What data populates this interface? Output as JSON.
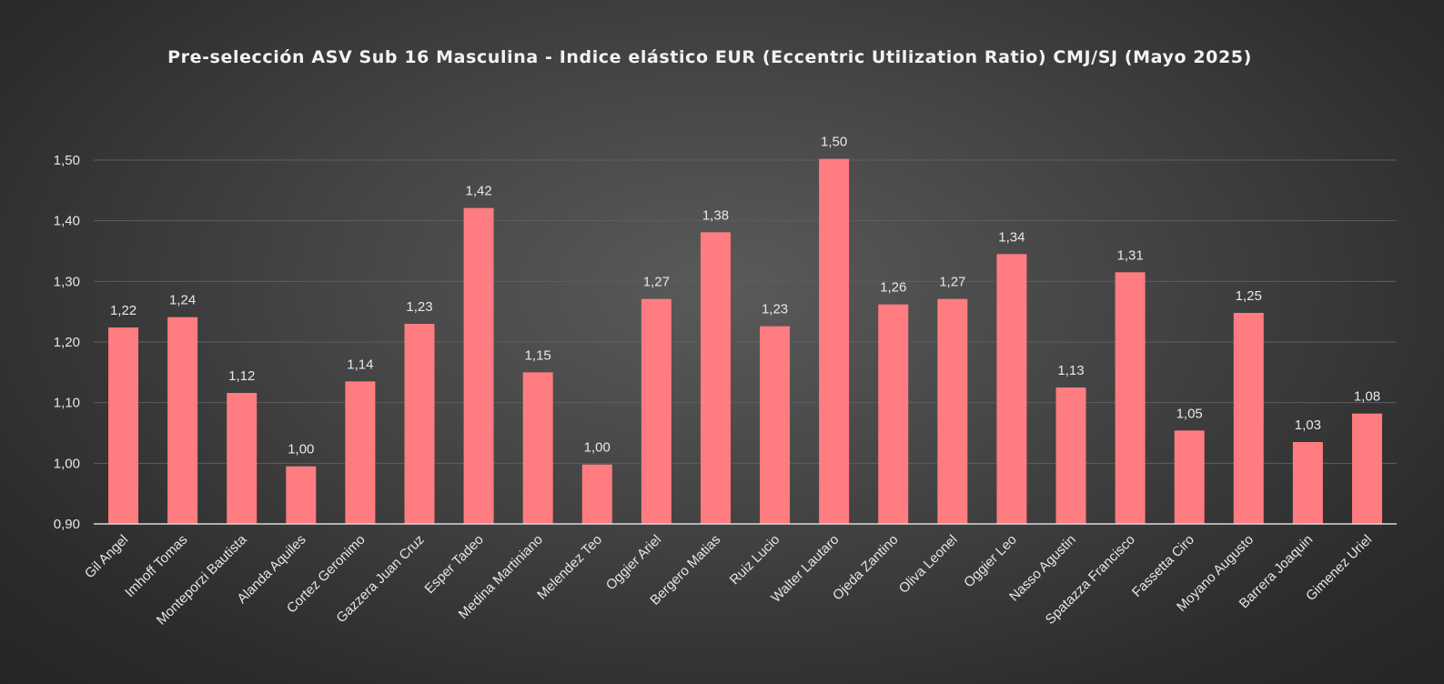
{
  "chart_data": {
    "type": "bar",
    "title": "Pre-selección ASV Sub 16 Masculina - Indice elástico EUR (Eccentric Utilization Ratio) CMJ/SJ (Mayo 2025)",
    "xlabel": "",
    "ylabel": "",
    "ylim": [
      0.9,
      1.5
    ],
    "yticks": [
      "0,90",
      "1,00",
      "1,10",
      "1,20",
      "1,30",
      "1,40",
      "1,50"
    ],
    "grid": true,
    "legend": "none",
    "bar_color": "#ff7c80",
    "categories": [
      "Gil Angel",
      "Imhoff Tomas",
      "Monteporzi Bautista",
      "Alanda Aquiles",
      "Cortez Geronimo",
      "Gazzera Juan Cruz",
      "Esper Tadeo",
      "Medina Martiniano",
      "Melendez Teo",
      "Oggier Ariel",
      "Bergero Matias",
      "Ruiz Lucio",
      "Walter Lautaro",
      "Ojeda Zantino",
      "Oliva Leonel",
      "Oggier Leo",
      "Nasso Agustin",
      "Spatazza Francisco",
      "Fassetta Ciro",
      "Moyano Augusto",
      "Barrera Joaquin",
      "Gimenez Uriel"
    ],
    "values": [
      1.224,
      1.241,
      1.116,
      0.995,
      1.135,
      1.23,
      1.421,
      1.15,
      0.998,
      1.271,
      1.381,
      1.226,
      1.502,
      1.262,
      1.271,
      1.345,
      1.125,
      1.315,
      1.054,
      1.248,
      1.035,
      1.082
    ],
    "data_labels": [
      "1,22",
      "1,24",
      "1,12",
      "1,00",
      "1,14",
      "1,23",
      "1,42",
      "1,15",
      "1,00",
      "1,27",
      "1,38",
      "1,23",
      "1,50",
      "1,26",
      "1,27",
      "1,34",
      "1,13",
      "1,31",
      "1,05",
      "1,25",
      "1,03",
      "1,08"
    ]
  }
}
